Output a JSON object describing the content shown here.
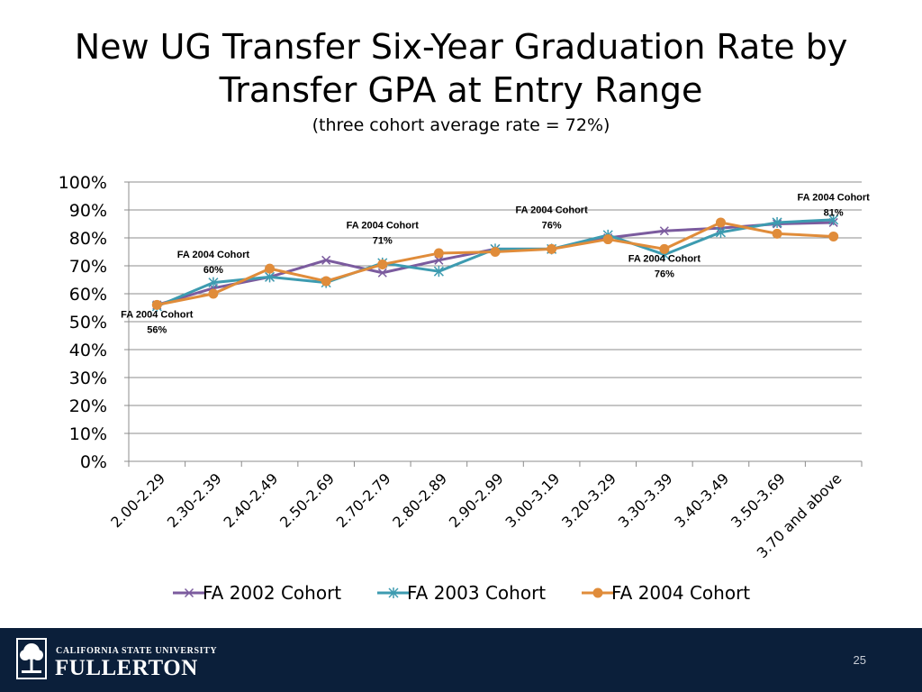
{
  "slide": {
    "title_line1": "New UG Transfer Six-Year Graduation Rate by",
    "title_line2": "Transfer GPA at Entry Range",
    "subtitle": "(three cohort average rate  = 72%)",
    "page_number": "25"
  },
  "footer": {
    "university_line1": "CALIFORNIA STATE UNIVERSITY",
    "university_line2": "FULLERTON",
    "background_color": "#0b1f3a"
  },
  "chart_data": {
    "type": "line",
    "categories": [
      "2.00-2.29",
      "2.30-2.39",
      "2.40-2.49",
      "2.50-2.69",
      "2.70-2.79",
      "2.80-2.89",
      "2.90-2.99",
      "3.00-3.19",
      "3.20-3.29",
      "3.30-3.39",
      "3.40-3.49",
      "3.50-3.69",
      "3.70 and above"
    ],
    "series": [
      {
        "name": "FA 2002 Cohort",
        "color": "#7b5b9e",
        "marker": "x",
        "values": [
          56,
          62,
          66,
          72,
          67.5,
          72,
          76,
          76,
          80,
          82.5,
          83.5,
          85,
          85.5
        ]
      },
      {
        "name": "FA 2003 Cohort",
        "color": "#3d9bb0",
        "marker": "asterisk",
        "values": [
          55.5,
          64,
          66,
          64,
          71,
          68,
          76,
          76,
          81,
          74,
          82,
          85.5,
          86.5
        ]
      },
      {
        "name": "FA 2004 Cohort",
        "color": "#e08c3a",
        "marker": "circle",
        "values": [
          56,
          60,
          69,
          64.5,
          70.5,
          74.5,
          75,
          76,
          79.5,
          76,
          85.5,
          81.5,
          80.5
        ]
      }
    ],
    "ylim": [
      0,
      100
    ],
    "yticks": [
      "0%",
      "10%",
      "20%",
      "30%",
      "40%",
      "50%",
      "60%",
      "70%",
      "80%",
      "90%",
      "100%"
    ],
    "grid": true,
    "legend_position": "bottom",
    "annotations": [
      {
        "series_index": 2,
        "point_index": 0,
        "label": "FA 2004 Cohort",
        "value": "56%",
        "placement": "below"
      },
      {
        "series_index": 2,
        "point_index": 1,
        "label": "FA 2004 Cohort",
        "value": "60%",
        "placement": "above"
      },
      {
        "series_index": 2,
        "point_index": 4,
        "label": "FA 2004 Cohort",
        "value": "71%",
        "placement": "above"
      },
      {
        "series_index": 2,
        "point_index": 7,
        "label": "FA 2004 Cohort",
        "value": "76%",
        "placement": "above"
      },
      {
        "series_index": 2,
        "point_index": 9,
        "label": "FA 2004 Cohort",
        "value": "76%",
        "placement": "below"
      },
      {
        "series_index": 2,
        "point_index": 12,
        "label": "FA 2004 Cohort",
        "value": "81%",
        "placement": "above"
      }
    ]
  }
}
